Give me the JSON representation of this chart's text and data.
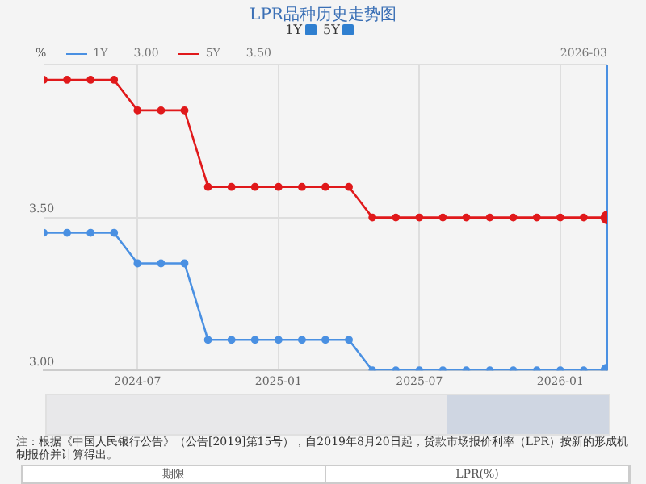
{
  "chart_data": {
    "type": "line",
    "title": "LPR品种历史走势图",
    "ylabel": "%",
    "x": [
      "2024-03",
      "2024-04",
      "2024-05",
      "2024-06",
      "2024-07",
      "2024-08",
      "2024-09",
      "2024-10",
      "2024-11",
      "2024-12",
      "2025-01",
      "2025-02",
      "2025-03",
      "2025-04",
      "2025-05",
      "2025-06",
      "2025-07",
      "2025-08",
      "2025-09",
      "2025-10",
      "2025-11",
      "2025-12",
      "2026-01",
      "2026-02",
      "2026-03"
    ],
    "series": [
      {
        "name": "1Y",
        "color": "#4a90e2",
        "values": [
          3.45,
          3.45,
          3.45,
          3.45,
          3.35,
          3.35,
          3.35,
          3.1,
          3.1,
          3.1,
          3.1,
          3.1,
          3.1,
          3.1,
          3.0,
          3.0,
          3.0,
          3.0,
          3.0,
          3.0,
          3.0,
          3.0,
          3.0,
          3.0,
          3.0
        ]
      },
      {
        "name": "5Y",
        "color": "#e0191b",
        "values": [
          3.95,
          3.95,
          3.95,
          3.95,
          3.85,
          3.85,
          3.85,
          3.6,
          3.6,
          3.6,
          3.6,
          3.6,
          3.6,
          3.6,
          3.5,
          3.5,
          3.5,
          3.5,
          3.5,
          3.5,
          3.5,
          3.5,
          3.5,
          3.5,
          3.5
        ]
      }
    ],
    "xlim": [
      "2024-03",
      "2026-03"
    ],
    "xticks": [
      "2024-07",
      "2025-01",
      "2025-07",
      "2026-01"
    ],
    "ylim": [
      3.0,
      4.0
    ],
    "yticks": [
      {
        "value": 3.0,
        "label": "3.00"
      },
      {
        "value": 3.5,
        "label": "3.50"
      },
      {
        "value": 4.0,
        "label": null
      }
    ],
    "grid": true,
    "legend": "top left",
    "marker": "circle",
    "line_style": "solid",
    "ref_lines": [
      {
        "axis": "x",
        "value": "2026-03",
        "label": "2026-03",
        "color": "#4a90e2"
      }
    ],
    "annotations": [
      "3.00",
      "3.50",
      "注：根据《中国人民银行公告》（公告[2019]第15号），自2019年8月20日起，贷款市场报价利率（LPR）按新的形成机制报价并计算得出。",
      "期限",
      "LPR(%)"
    ]
  }
}
